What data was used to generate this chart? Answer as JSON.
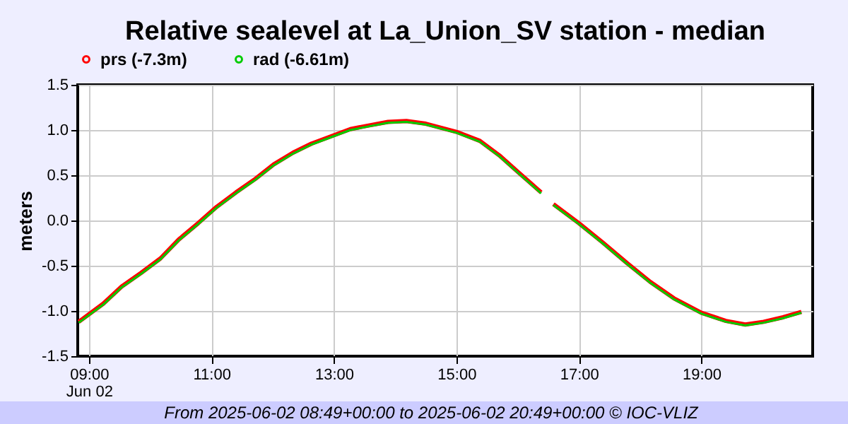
{
  "chart_data": {
    "type": "line",
    "title": "Relative sealevel at La_Union_SV station - median",
    "ylabel": "meters",
    "annotations": [
      "From 2025-06-02 08:49+00:00 to 2025-06-02 20:49+00:00 © IOC-VLIZ"
    ],
    "x": [
      "2025-06-02T08:50",
      "2025-06-02T09:14",
      "2025-06-02T09:32",
      "2025-06-02T09:51",
      "2025-06-02T10:10",
      "2025-06-02T10:28",
      "2025-06-02T10:47",
      "2025-06-02T11:05",
      "2025-06-02T11:24",
      "2025-06-02T11:43",
      "2025-06-02T12:01",
      "2025-06-02T12:20",
      "2025-06-02T12:38",
      "2025-06-02T12:57",
      "2025-06-02T13:16",
      "2025-06-02T13:34",
      "2025-06-02T13:53",
      "2025-06-02T14:11",
      "2025-06-02T14:30",
      "2025-06-02T15:00",
      "2025-06-02T15:23",
      "2025-06-02T15:42",
      "2025-06-02T16:00",
      "2025-06-02T16:23",
      "2025-06-02T16:30",
      "2025-06-02T16:35",
      "2025-06-02T17:00",
      "2025-06-02T17:23",
      "2025-06-02T17:47",
      "2025-06-02T18:10",
      "2025-06-02T18:33",
      "2025-06-02T19:00",
      "2025-06-02T19:24",
      "2025-06-02T19:43",
      "2025-06-02T20:01",
      "2025-06-02T20:20",
      "2025-06-02T20:38"
    ],
    "series": [
      {
        "name": "prs (-7.3m)",
        "color": "#ff0000",
        "values": [
          -1.12,
          -0.92,
          -0.73,
          -0.58,
          -0.42,
          -0.21,
          -0.03,
          0.15,
          0.31,
          0.46,
          0.62,
          0.75,
          0.85,
          0.93,
          1.01,
          1.05,
          1.09,
          1.1,
          1.07,
          0.98,
          0.88,
          0.72,
          0.54,
          0.31,
          null,
          0.18,
          -0.03,
          -0.24,
          -0.47,
          -0.68,
          -0.86,
          -1.02,
          -1.11,
          -1.15,
          -1.12,
          -1.07,
          -1.01
        ]
      },
      {
        "name": "rad (-6.61m)",
        "color": "#00cc00",
        "values": [
          -1.13,
          -0.93,
          -0.74,
          -0.59,
          -0.43,
          -0.22,
          -0.04,
          0.14,
          0.3,
          0.45,
          0.61,
          0.74,
          0.84,
          0.92,
          1.0,
          1.04,
          1.08,
          1.09,
          1.06,
          0.97,
          0.87,
          0.71,
          0.53,
          0.3,
          null,
          0.17,
          -0.04,
          -0.25,
          -0.48,
          -0.69,
          -0.87,
          -1.03,
          -1.12,
          -1.16,
          -1.13,
          -1.08,
          -1.02
        ]
      }
    ],
    "xlim": [
      "2025-06-02T08:49",
      "2025-06-02T20:49"
    ],
    "xticks": [
      {
        "value": "2025-06-02T09:00",
        "label": "09:00\nJun 02"
      },
      {
        "value": "2025-06-02T11:00",
        "label": "11:00"
      },
      {
        "value": "2025-06-02T13:00",
        "label": "13:00"
      },
      {
        "value": "2025-06-02T15:00",
        "label": "15:00"
      },
      {
        "value": "2025-06-02T17:00",
        "label": "17:00"
      },
      {
        "value": "2025-06-02T19:00",
        "label": "19:00"
      }
    ],
    "ylim": [
      -1.5,
      1.5
    ],
    "yticks": [
      {
        "value": -1.5,
        "label": "-1.5"
      },
      {
        "value": -1,
        "label": "-1.0"
      },
      {
        "value": -0.5,
        "label": "-0.5"
      },
      {
        "value": 0,
        "label": "0.0"
      },
      {
        "value": 0.5,
        "label": "0.5"
      },
      {
        "value": 1,
        "label": "1.0"
      },
      {
        "value": 1.5,
        "label": "1.5"
      }
    ],
    "grid": true,
    "legend": "top left",
    "line_style": "solid"
  }
}
